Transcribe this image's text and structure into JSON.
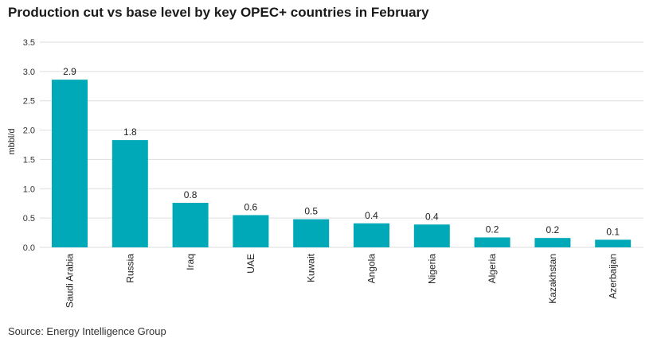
{
  "title": "Production cut vs base level by key OPEC+ countries in February",
  "source": "Source: Energy Intelligence Group",
  "colors": {
    "bar": "#00a9b8",
    "grid": "#dddddd"
  },
  "chart_data": {
    "type": "bar",
    "title": "Production cut vs base level by key OPEC+ countries in February",
    "xlabel": "",
    "ylabel": "mbbl/d",
    "ylim": [
      0,
      3.5
    ],
    "yticks": [
      "0.0",
      "0.5",
      "1.0",
      "1.5",
      "2.0",
      "2.5",
      "3.0",
      "3.5"
    ],
    "grid": true,
    "legend": "none",
    "categories": [
      "Saudi Arabia",
      "Russia",
      "Iraq",
      "UAE",
      "Kuwait",
      "Angola",
      "Nigeria",
      "Algeria",
      "Kazakhstan",
      "Azerbaijan"
    ],
    "values": [
      2.86,
      1.83,
      0.76,
      0.55,
      0.48,
      0.41,
      0.39,
      0.17,
      0.16,
      0.13
    ],
    "value_labels": [
      "2.9",
      "1.8",
      "0.8",
      "0.6",
      "0.5",
      "0.4",
      "0.4",
      "0.2",
      "0.2",
      "0.1"
    ]
  }
}
